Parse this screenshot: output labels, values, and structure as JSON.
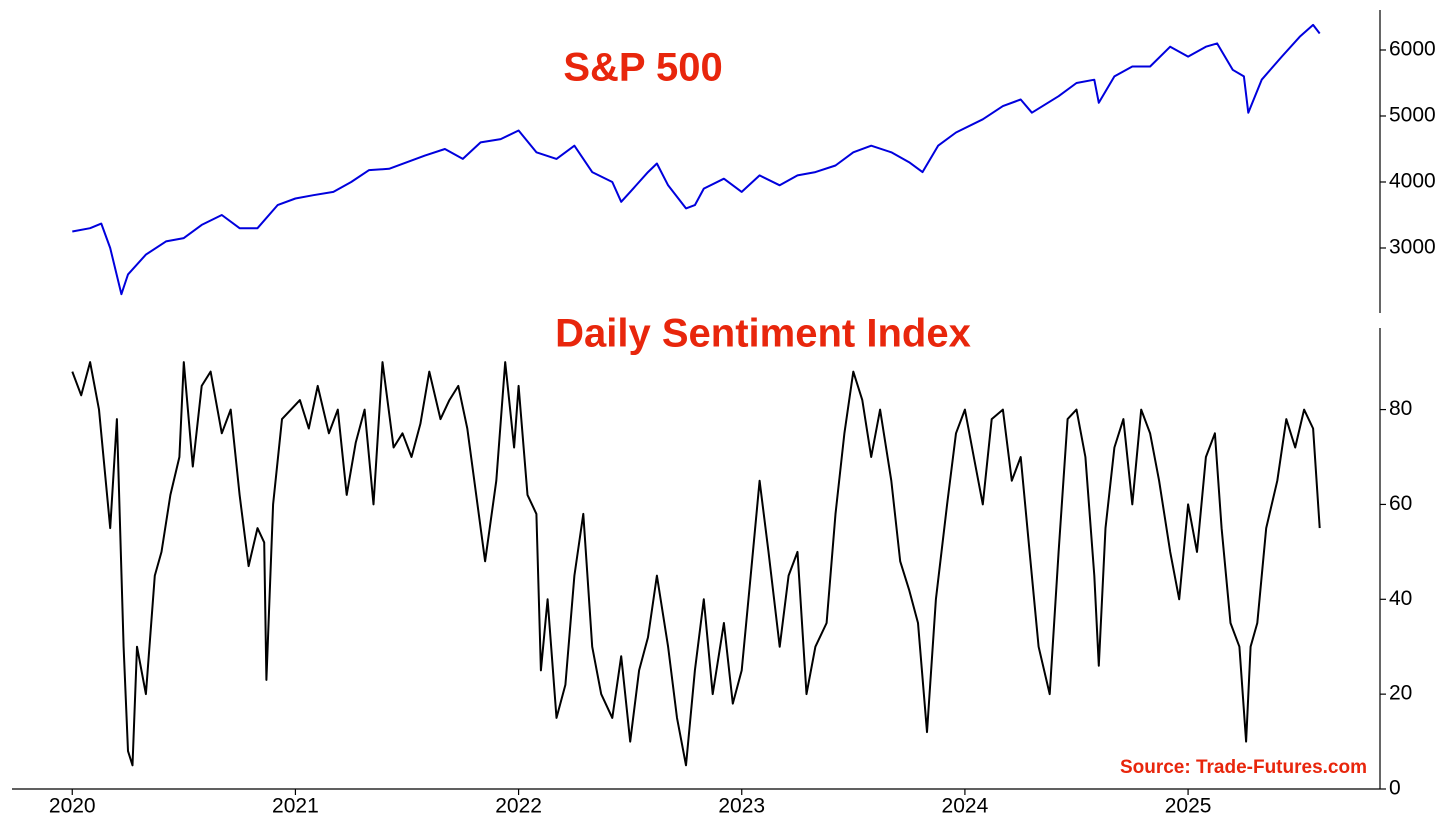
{
  "chart_data": [
    {
      "type": "line",
      "title": "S&P 500",
      "title_color": "#e8260c",
      "x": [
        2020.0,
        2020.08,
        2020.13,
        2020.17,
        2020.22,
        2020.25,
        2020.33,
        2020.42,
        2020.5,
        2020.58,
        2020.67,
        2020.75,
        2020.83,
        2020.92,
        2021.0,
        2021.08,
        2021.17,
        2021.25,
        2021.33,
        2021.42,
        2021.5,
        2021.58,
        2021.67,
        2021.75,
        2021.83,
        2021.92,
        2022.0,
        2022.08,
        2022.17,
        2022.25,
        2022.33,
        2022.42,
        2022.46,
        2022.5,
        2022.58,
        2022.62,
        2022.67,
        2022.75,
        2022.79,
        2022.83,
        2022.92,
        2023.0,
        2023.08,
        2023.17,
        2023.25,
        2023.33,
        2023.42,
        2023.5,
        2023.58,
        2023.67,
        2023.75,
        2023.81,
        2023.88,
        2023.96,
        2024.08,
        2024.17,
        2024.25,
        2024.3,
        2024.42,
        2024.5,
        2024.58,
        2024.6,
        2024.67,
        2024.75,
        2024.83,
        2024.92,
        2025.0,
        2025.08,
        2025.13,
        2025.2,
        2025.25,
        2025.27,
        2025.33,
        2025.42,
        2025.5,
        2025.56,
        2025.59
      ],
      "series": [
        {
          "color": "#0000dd",
          "values": [
            3250,
            3300,
            3370,
            3000,
            2300,
            2600,
            2900,
            3100,
            3150,
            3350,
            3500,
            3300,
            3300,
            3650,
            3750,
            3800,
            3850,
            4000,
            4180,
            4200,
            4300,
            4400,
            4500,
            4350,
            4600,
            4650,
            4780,
            4450,
            4350,
            4550,
            4150,
            4000,
            3700,
            3850,
            4150,
            4280,
            3950,
            3600,
            3650,
            3900,
            4050,
            3850,
            4100,
            3950,
            4100,
            4150,
            4250,
            4450,
            4550,
            4450,
            4300,
            4150,
            4550,
            4750,
            4950,
            5150,
            5250,
            5050,
            5300,
            5500,
            5550,
            5200,
            5600,
            5750,
            5750,
            6050,
            5900,
            6050,
            6100,
            5700,
            5600,
            5050,
            5550,
            5900,
            6200,
            6380,
            6250
          ]
        }
      ],
      "xlim": [
        2019.73,
        2025.86
      ],
      "ylim": [
        2015,
        6606
      ],
      "yticks": [
        3000,
        4000,
        5000,
        6000
      ]
    },
    {
      "type": "line",
      "title": "Daily Sentiment Index",
      "title_color": "#e8260c",
      "annotation": "Source: Trade-Futures.com",
      "x": [
        2020.0,
        2020.04,
        2020.08,
        2020.12,
        2020.17,
        2020.2,
        2020.23,
        2020.25,
        2020.27,
        2020.29,
        2020.33,
        2020.37,
        2020.4,
        2020.44,
        2020.48,
        2020.5,
        2020.54,
        2020.58,
        2020.62,
        2020.67,
        2020.71,
        2020.75,
        2020.79,
        2020.83,
        2020.86,
        2020.87,
        2020.9,
        2020.94,
        2020.98,
        2021.02,
        2021.06,
        2021.1,
        2021.15,
        2021.19,
        2021.23,
        2021.27,
        2021.31,
        2021.35,
        2021.39,
        2021.44,
        2021.48,
        2021.52,
        2021.56,
        2021.6,
        2021.65,
        2021.69,
        2021.73,
        2021.77,
        2021.81,
        2021.85,
        2021.9,
        2021.94,
        2021.98,
        2022.0,
        2022.04,
        2022.08,
        2022.1,
        2022.13,
        2022.17,
        2022.21,
        2022.25,
        2022.29,
        2022.33,
        2022.37,
        2022.42,
        2022.46,
        2022.5,
        2022.54,
        2022.58,
        2022.62,
        2022.67,
        2022.71,
        2022.73,
        2022.75,
        2022.79,
        2022.83,
        2022.87,
        2022.92,
        2022.96,
        2023.0,
        2023.04,
        2023.08,
        2023.12,
        2023.17,
        2023.21,
        2023.25,
        2023.29,
        2023.33,
        2023.38,
        2023.42,
        2023.46,
        2023.5,
        2023.54,
        2023.58,
        2023.62,
        2023.67,
        2023.71,
        2023.75,
        2023.79,
        2023.83,
        2023.87,
        2023.92,
        2023.96,
        2024.0,
        2024.04,
        2024.08,
        2024.12,
        2024.17,
        2024.21,
        2024.25,
        2024.29,
        2024.33,
        2024.38,
        2024.42,
        2024.46,
        2024.5,
        2024.54,
        2024.58,
        2024.6,
        2024.63,
        2024.67,
        2024.71,
        2024.75,
        2024.79,
        2024.83,
        2024.87,
        2024.92,
        2024.96,
        2025.0,
        2025.04,
        2025.08,
        2025.12,
        2025.15,
        2025.19,
        2025.23,
        2025.26,
        2025.28,
        2025.31,
        2025.35,
        2025.4,
        2025.44,
        2025.48,
        2025.52,
        2025.56,
        2025.59
      ],
      "series": [
        {
          "color": "#000000",
          "values": [
            88,
            83,
            90,
            80,
            55,
            78,
            30,
            8,
            5,
            30,
            20,
            45,
            50,
            62,
            70,
            90,
            68,
            85,
            88,
            75,
            80,
            62,
            47,
            55,
            52,
            23,
            60,
            78,
            80,
            82,
            76,
            85,
            75,
            80,
            62,
            73,
            80,
            60,
            90,
            72,
            75,
            70,
            77,
            88,
            78,
            82,
            85,
            76,
            62,
            48,
            65,
            90,
            72,
            85,
            62,
            58,
            25,
            40,
            15,
            22,
            45,
            58,
            30,
            20,
            15,
            28,
            10,
            25,
            32,
            45,
            30,
            15,
            10,
            5,
            25,
            40,
            20,
            35,
            18,
            25,
            45,
            65,
            50,
            30,
            45,
            50,
            20,
            30,
            35,
            58,
            75,
            88,
            82,
            70,
            80,
            65,
            48,
            42,
            35,
            12,
            40,
            60,
            75,
            80,
            70,
            60,
            78,
            80,
            65,
            70,
            50,
            30,
            20,
            50,
            78,
            80,
            70,
            45,
            26,
            55,
            72,
            78,
            60,
            80,
            75,
            65,
            50,
            40,
            60,
            50,
            70,
            75,
            55,
            35,
            30,
            10,
            30,
            35,
            55,
            65,
            78,
            72,
            80,
            76,
            55
          ]
        }
      ],
      "xlim": [
        2019.73,
        2025.86
      ],
      "ylim": [
        0,
        97.2
      ],
      "xticks": [
        2020,
        2021,
        2022,
        2023,
        2024,
        2025
      ],
      "yticks": [
        0,
        20,
        40,
        60,
        80
      ]
    }
  ]
}
